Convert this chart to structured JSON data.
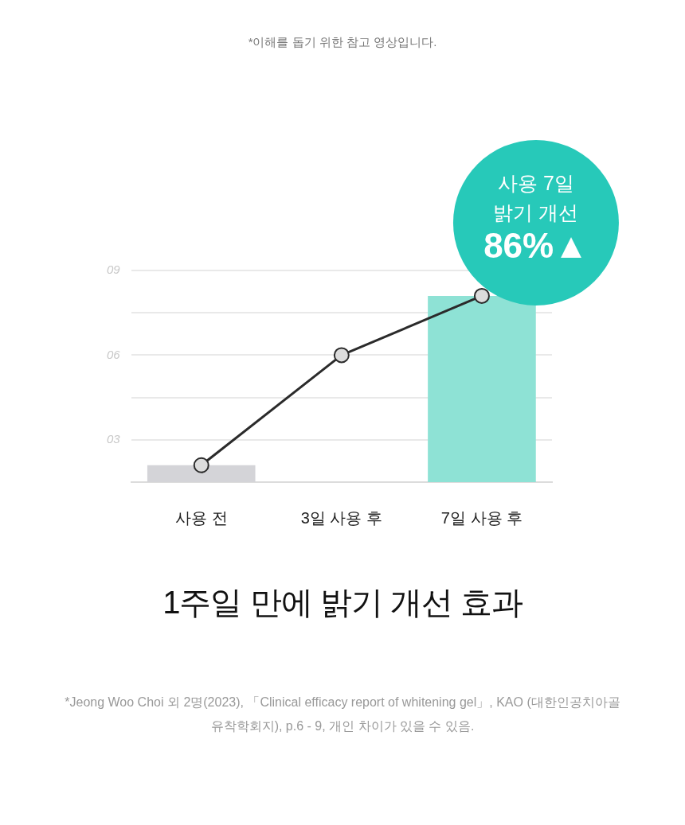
{
  "chart_data": {
    "type": "bar",
    "subtitle": "*이해를 돕기 위한 참고 영상입니다.",
    "title": "1주일 만에 밝기 개선 효과",
    "categories": [
      "사용 전",
      "3일 사용 후",
      "7일 사용 후"
    ],
    "series": [
      {
        "colors": [
          "#d4d4d8",
          "#ffffff",
          "#8ee2d5"
        ],
        "values": [
          2.1,
          null,
          8.1
        ]
      },
      {
        "type": "line",
        "color": "#2b2b2b",
        "values": [
          2.1,
          6,
          8.1
        ]
      }
    ],
    "ylim": [
      1.5,
      9
    ],
    "yticks": [
      {
        "value": 3,
        "label": "03"
      },
      {
        "value": 4.5,
        "label": null
      },
      {
        "value": 6,
        "label": "06"
      },
      {
        "value": 7.5,
        "label": null
      },
      {
        "value": 9,
        "label": "09"
      }
    ],
    "grid": "y",
    "legend": false,
    "marker": "circle",
    "line_style": "solid",
    "annotations": [
      {
        "text": "사용 7일\n밝기 개선\n86%▲",
        "x": "7일 사용 후",
        "y": 8.1
      },
      "*Jeong Woo Choi 외 2명(2023), 「Clinical efficacy report of whitening gel」, KAO (대한인공치아골유착학회지), p.6 - 9, 개인 차이가 있을 수 있음."
    ]
  }
}
